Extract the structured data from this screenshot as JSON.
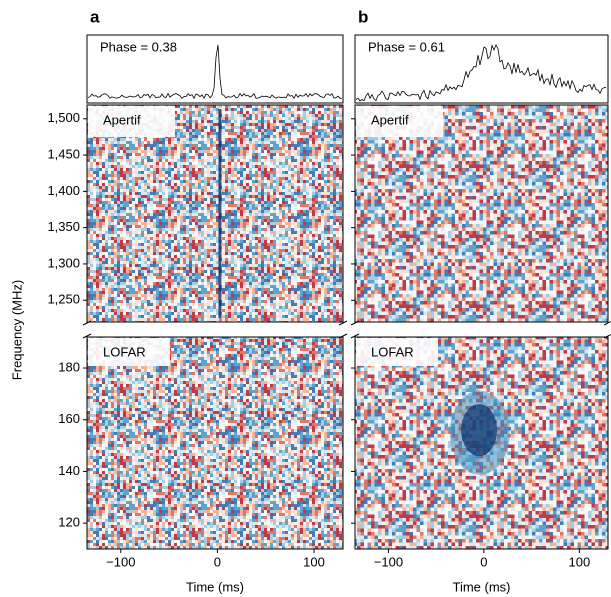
{
  "chart_data": [
    {
      "type": "heatmap",
      "panel_label": "a",
      "annotation": "Phase = 0.38",
      "xlabel": "Time (ms)",
      "ylabel": "Frequency (MHz)",
      "xlim": [
        -135,
        130
      ],
      "xticks": [
        {
          "value": -100,
          "label": "−100"
        },
        0,
        100
      ],
      "subplots": [
        {
          "name": "Apertif",
          "ylim": [
            1220,
            1519
          ],
          "yticks": [
            {
              "value": 1250,
              "label": "1,250"
            },
            {
              "value": 1300,
              "label": "1,300"
            },
            {
              "value": 1350,
              "label": "1,350"
            },
            {
              "value": 1400,
              "label": "1,400"
            },
            {
              "value": 1450,
              "label": "1,450"
            },
            {
              "value": 1500,
              "label": "1,500"
            }
          ]
        },
        {
          "name": "LOFAR",
          "ylim": [
            110,
            192
          ],
          "yticks": [
            120,
            140,
            160,
            180
          ]
        }
      ]
    },
    {
      "type": "heatmap",
      "panel_label": "b",
      "annotation": "Phase = 0.61",
      "xlabel": "Time (ms)",
      "xlim": [
        -135,
        130
      ],
      "xticks": [
        {
          "value": -100,
          "label": "−100"
        },
        0,
        100
      ],
      "subplots": [
        {
          "name": "Apertif",
          "ylim": [
            1220,
            1519
          ]
        },
        {
          "name": "LOFAR",
          "ylim": [
            110,
            192
          ]
        }
      ]
    }
  ]
}
